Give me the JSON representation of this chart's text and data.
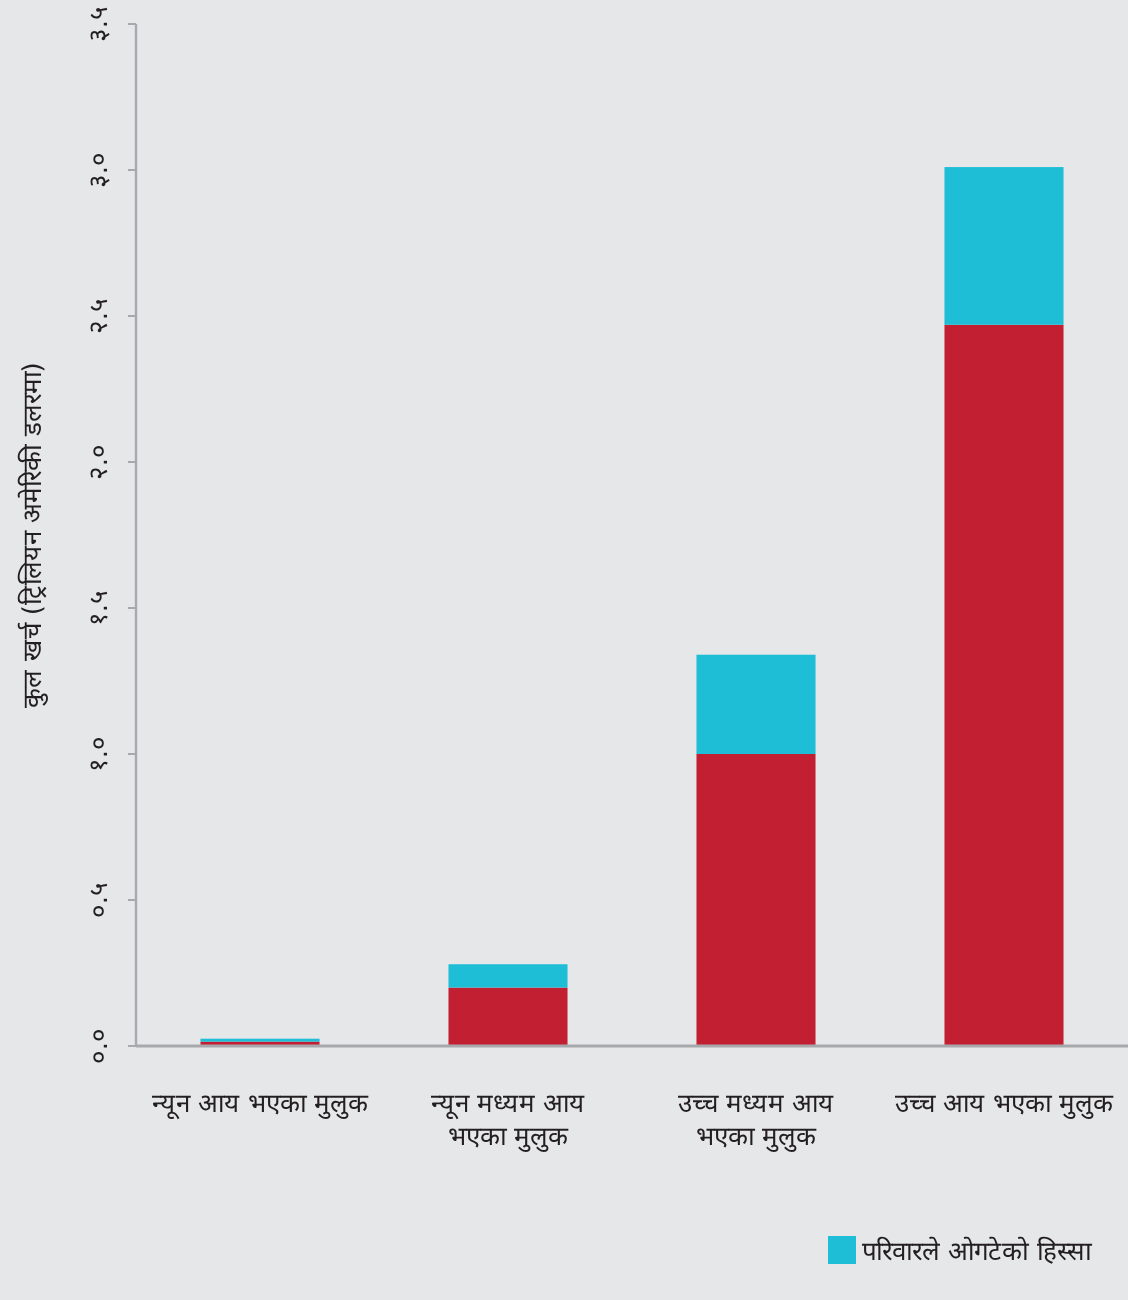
{
  "chart_data": {
    "type": "bar",
    "stacked": true,
    "ylabel": "कुल खर्च (ट्रिलियन अमेरिकी डलरमा)",
    "categories": [
      "न्यून आय भएका मुलुक",
      "न्यून मध्यम आय भएका मुलुक",
      "उच्च मध्यम आय भएका मुलुक",
      "उच्च आय भएका मुलुक"
    ],
    "series": [
      {
        "color": "#c21f32",
        "values": [
          0.015,
          0.2,
          1.0,
          2.47
        ]
      },
      {
        "name": "परिवारले ओगटेको हिस्सा",
        "color": "#1ebed6",
        "values": [
          0.01,
          0.08,
          0.34,
          0.54
        ]
      }
    ],
    "ylim": [
      0,
      3.5
    ],
    "yticks": [
      {
        "value": 0,
        "label": "०.०"
      },
      {
        "value": 0.5,
        "label": "०.५"
      },
      {
        "value": 1,
        "label": "१.०"
      },
      {
        "value": 1.5,
        "label": "१.५"
      },
      {
        "value": 2,
        "label": "२.०"
      },
      {
        "value": 2.5,
        "label": "२.५"
      },
      {
        "value": 3,
        "label": "३.०"
      },
      {
        "value": 3.5,
        "label": "३.५"
      }
    ],
    "grid": false,
    "legend": "bottom right"
  }
}
